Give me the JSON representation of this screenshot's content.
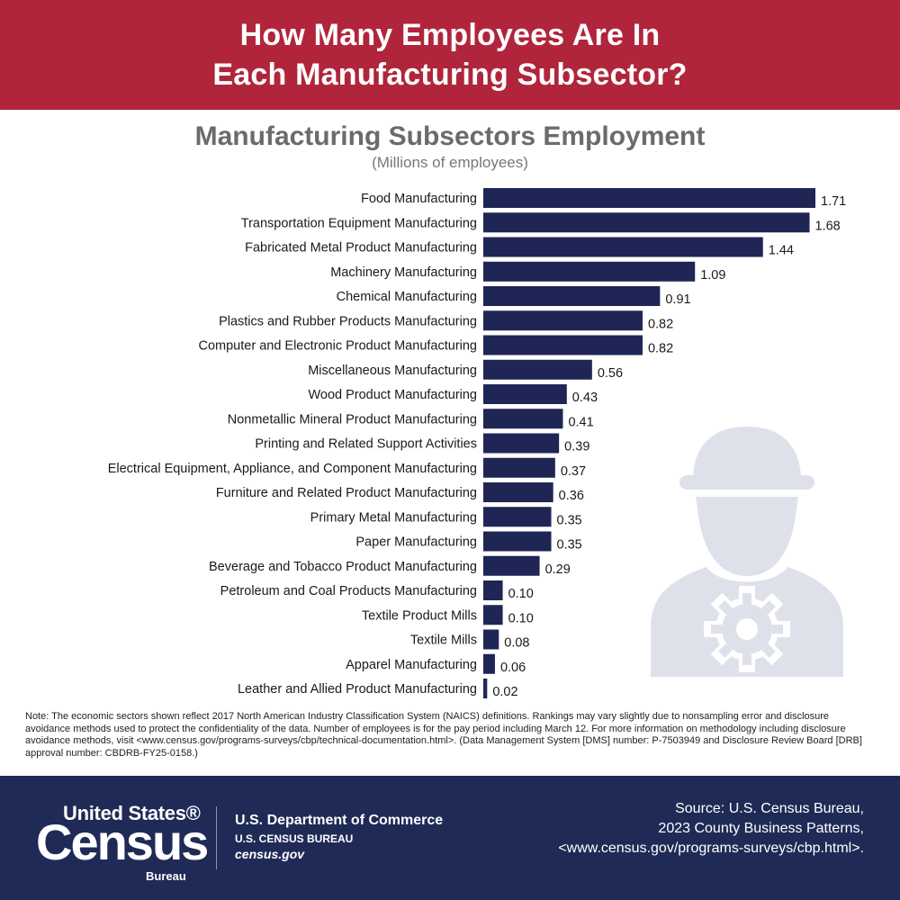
{
  "header": {
    "line1": "How Many Employees Are In",
    "line2": "Each Manufacturing Subsector?"
  },
  "colors": {
    "header_bg": "#b0253b",
    "bar": "#1f2656",
    "footer_bg": "#1f2b56",
    "icon": "#dfe1ea",
    "title": "#6b6b6b"
  },
  "chart_data": {
    "type": "bar",
    "orientation": "horizontal",
    "title": "Manufacturing Subsectors Employment",
    "subtitle": "(Millions of employees)",
    "categories": [
      "Food Manufacturing",
      "Transportation Equipment Manufacturing",
      "Fabricated Metal Product Manufacturing",
      "Machinery Manufacturing",
      "Chemical Manufacturing",
      "Plastics and Rubber Products Manufacturing",
      "Computer and Electronic Product Manufacturing",
      "Miscellaneous Manufacturing",
      "Wood Product Manufacturing",
      "Nonmetallic Mineral Product Manufacturing",
      "Printing and Related Support Activities",
      "Electrical Equipment, Appliance, and Component Manufacturing",
      "Furniture and Related Product Manufacturing",
      "Primary Metal Manufacturing",
      "Paper Manufacturing",
      "Beverage and Tobacco Product Manufacturing",
      "Petroleum and Coal Products Manufacturing",
      "Textile Product Mills",
      "Textile Mills",
      "Apparel Manufacturing",
      "Leather and Allied Product Manufacturing"
    ],
    "values": [
      1.71,
      1.68,
      1.44,
      1.09,
      0.91,
      0.82,
      0.82,
      0.56,
      0.43,
      0.41,
      0.39,
      0.37,
      0.36,
      0.35,
      0.35,
      0.29,
      0.1,
      0.1,
      0.08,
      0.06,
      0.02
    ],
    "value_labels": [
      "1.71",
      "1.68",
      "1.44",
      "1.09",
      "0.91",
      "0.82",
      "0.82",
      "0.56",
      "0.43",
      "0.41",
      "0.39",
      "0.37",
      "0.36",
      "0.35",
      "0.35",
      "0.29",
      "0.10",
      "0.10",
      "0.08",
      "0.06",
      "0.02"
    ],
    "xlim": [
      0,
      1.71
    ],
    "grid": false,
    "legend": "none"
  },
  "icon": "construction-worker-gear-icon",
  "note": "Note: The economic sectors shown reflect 2017 North American Industry Classification System (NAICS) definitions. Rankings may vary slightly due to nonsampling error and disclosure avoidance methods used to protect the confidentiality of the data. Number of employees is for the pay period including March 12. For more information on methodology including disclosure avoidance methods, visit <www.census.gov/programs-surveys/cbp/technical-documentation.html>. (Data Management System [DMS] number: P-7503949 and Disclosure Review Board [DRB] approval number: CBDRB-FY25-0158.)",
  "footer": {
    "logo_top": "United States®",
    "logo_main": "Census",
    "logo_bottom": "Bureau",
    "dept": "U.S. Department of Commerce",
    "bureau": "U.S. CENSUS BUREAU",
    "site": "census.gov",
    "source_line1": "Source: U.S. Census Bureau,",
    "source_line2": "2023 County Business Patterns,",
    "source_line3": "<www.census.gov/programs-surveys/cbp.html>."
  }
}
